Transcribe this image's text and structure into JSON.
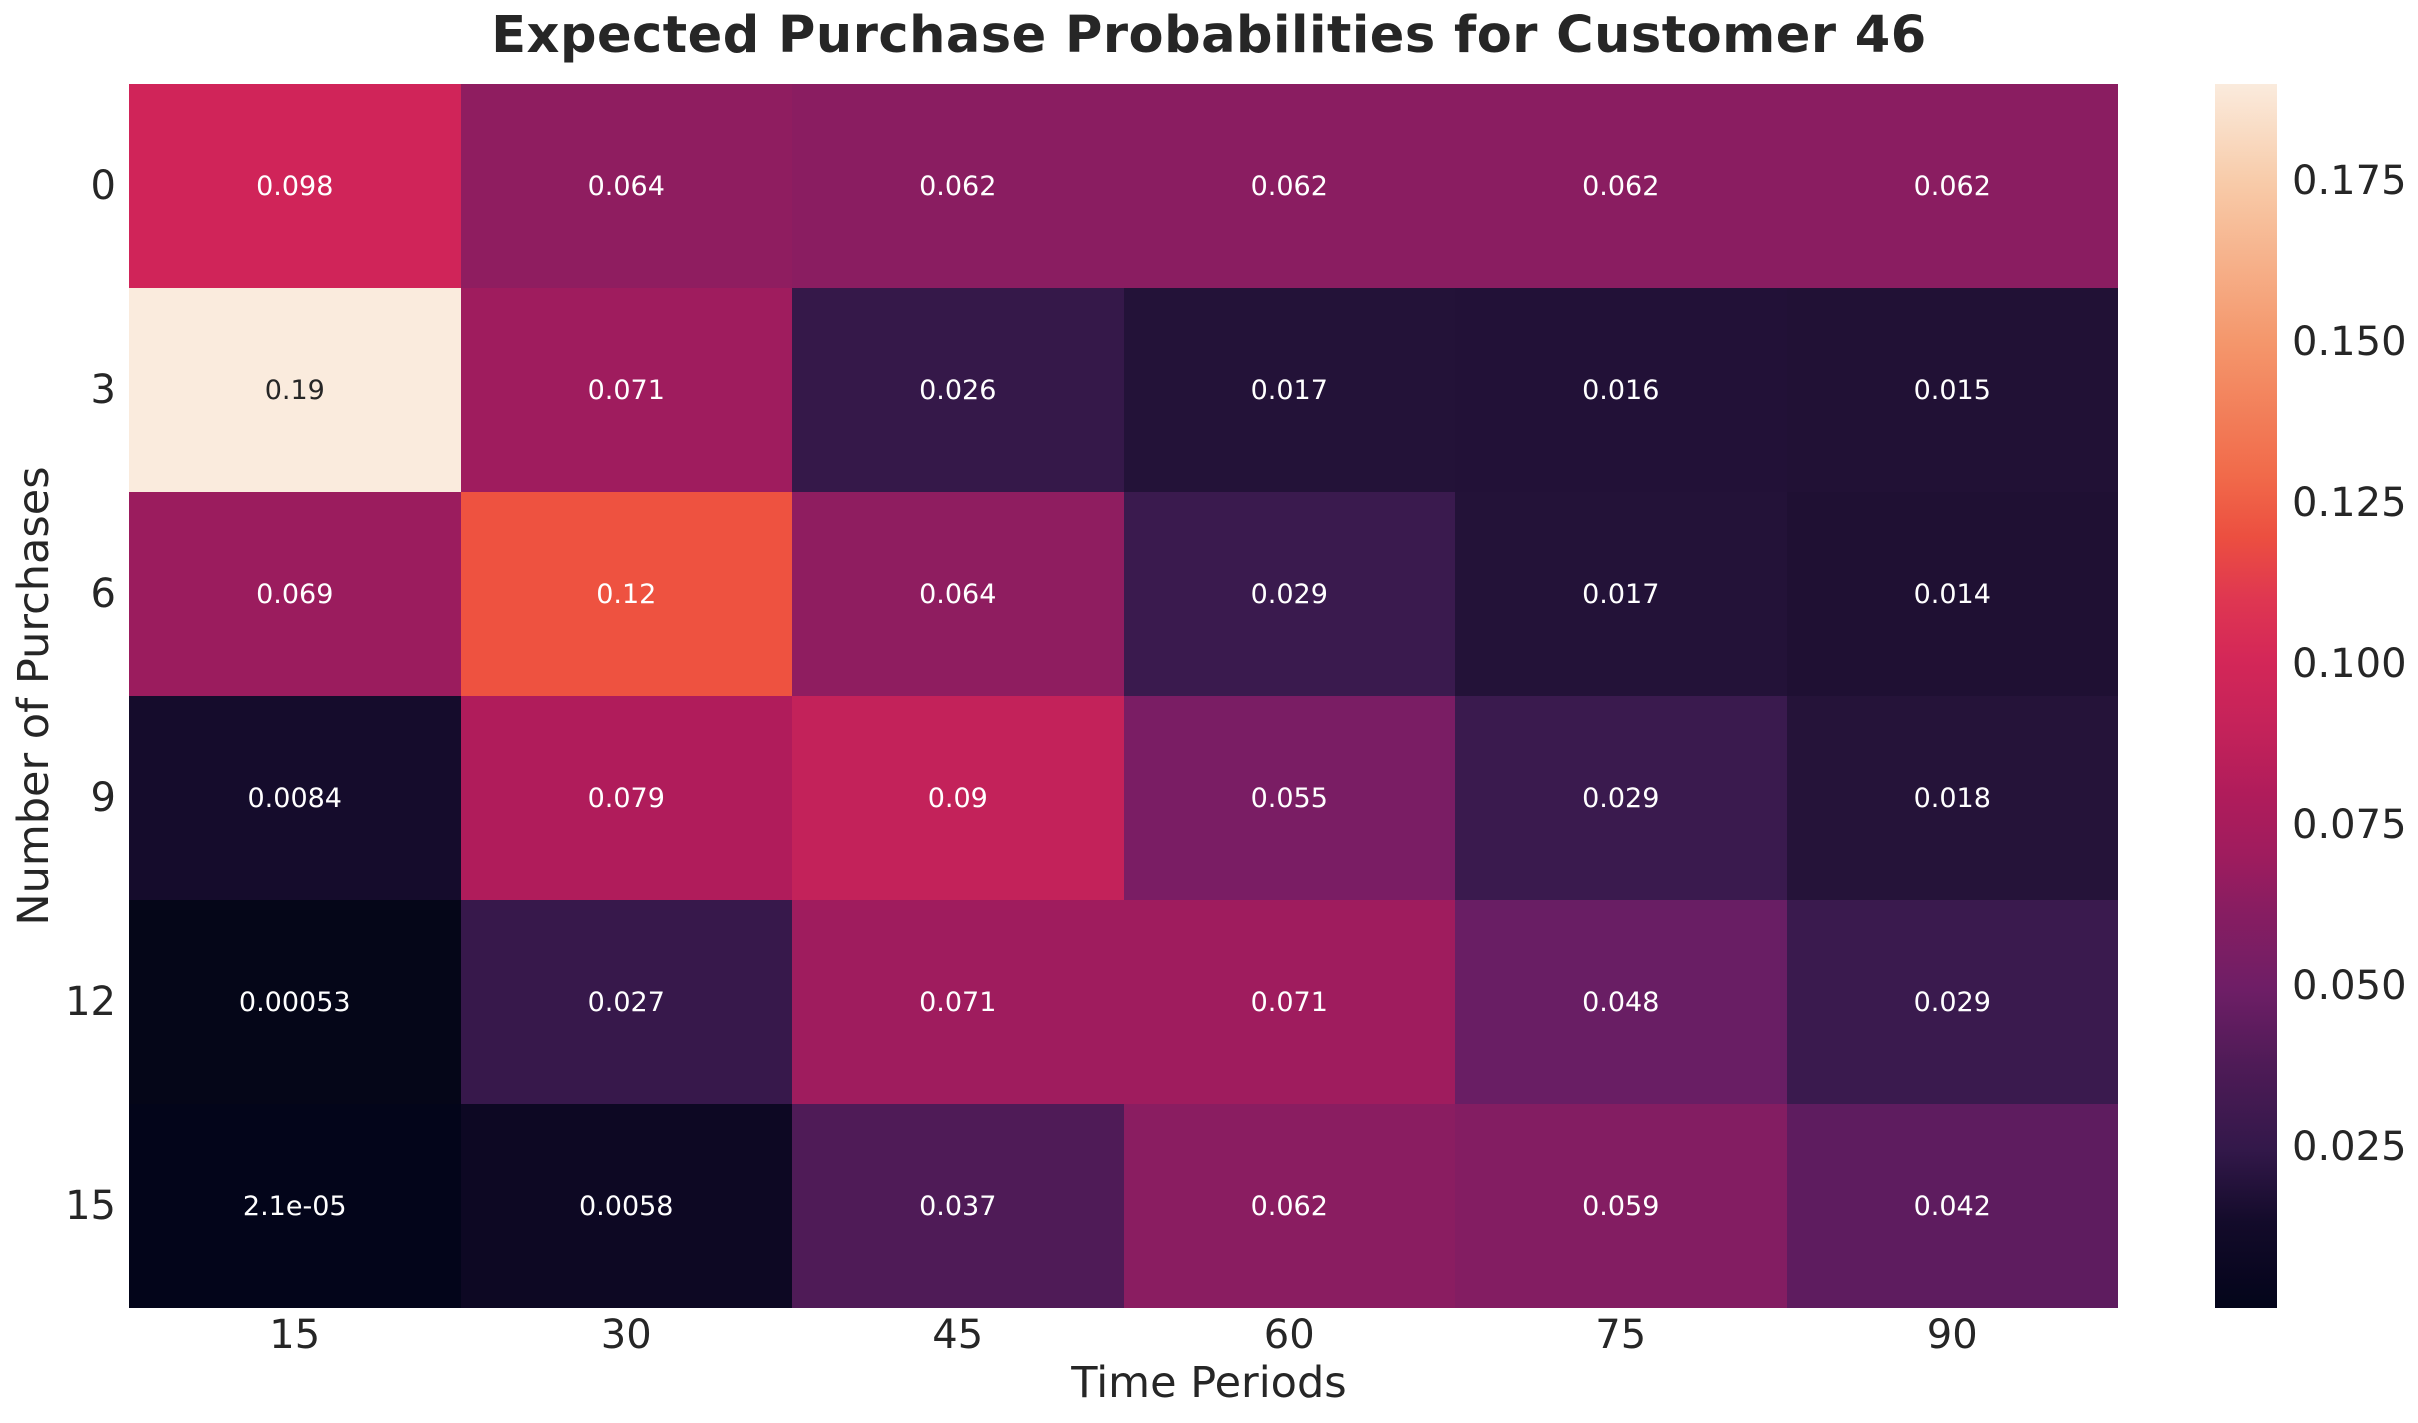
{
  "chart_data": {
    "type": "heatmap",
    "title": "Expected Purchase Probabilities for Customer 46",
    "xlabel": "Time Periods",
    "ylabel": "Number of Purchases",
    "x_categories": [
      "15",
      "30",
      "45",
      "60",
      "75",
      "90"
    ],
    "y_categories": [
      "0",
      "3",
      "6",
      "9",
      "12",
      "15"
    ],
    "values": [
      [
        0.098,
        0.064,
        0.062,
        0.062,
        0.062,
        0.062
      ],
      [
        0.19,
        0.071,
        0.026,
        0.017,
        0.016,
        0.015
      ],
      [
        0.069,
        0.12,
        0.064,
        0.029,
        0.017,
        0.014
      ],
      [
        0.0084,
        0.079,
        0.09,
        0.055,
        0.029,
        0.018
      ],
      [
        0.00053,
        0.027,
        0.071,
        0.071,
        0.048,
        0.029
      ],
      [
        2.1e-05,
        0.0058,
        0.037,
        0.062,
        0.059,
        0.042
      ]
    ],
    "value_labels": [
      [
        "0.098",
        "0.064",
        "0.062",
        "0.062",
        "0.062",
        "0.062"
      ],
      [
        "0.19",
        "0.071",
        "0.026",
        "0.017",
        "0.016",
        "0.015"
      ],
      [
        "0.069",
        "0.12",
        "0.064",
        "0.029",
        "0.017",
        "0.014"
      ],
      [
        "0.0084",
        "0.079",
        "0.09",
        "0.055",
        "0.029",
        "0.018"
      ],
      [
        "0.00053",
        "0.027",
        "0.071",
        "0.071",
        "0.048",
        "0.029"
      ],
      [
        "2.1e-05",
        "0.0058",
        "0.037",
        "0.062",
        "0.059",
        "0.042"
      ]
    ],
    "cell_colors": [
      [
        "#D02459",
        "#8F1D60",
        "#8A1D61",
        "#8A1D61",
        "#8A1D61",
        "#8A1D61"
      ],
      [
        "#FAEBDD",
        "#9F1C5E",
        "#351849",
        "#231238",
        "#221137",
        "#211135"
      ],
      [
        "#9B1C5E",
        "#EE5240",
        "#8F1D60",
        "#3A1A4E",
        "#231238",
        "#1F1033"
      ],
      [
        "#150C2C",
        "#B01C5B",
        "#C3225A",
        "#7A1D64",
        "#3A1A4E",
        "#251339"
      ],
      [
        "#050618",
        "#37184B",
        "#9F1C5E",
        "#9F1C5E",
        "#691E64",
        "#3A1A4E"
      ],
      [
        "#03051A",
        "#0D0823",
        "#4F1B57",
        "#8A1D61",
        "#831D62",
        "#5E1C5F"
      ]
    ],
    "cell_text_colors": [
      [
        "#FFFFFF",
        "#FFFFFF",
        "#FFFFFF",
        "#FFFFFF",
        "#FFFFFF",
        "#FFFFFF"
      ],
      [
        "#262626",
        "#FFFFFF",
        "#FFFFFF",
        "#FFFFFF",
        "#FFFFFF",
        "#FFFFFF"
      ],
      [
        "#FFFFFF",
        "#FFFFFF",
        "#FFFFFF",
        "#FFFFFF",
        "#FFFFFF",
        "#FFFFFF"
      ],
      [
        "#FFFFFF",
        "#FFFFFF",
        "#FFFFFF",
        "#FFFFFF",
        "#FFFFFF",
        "#FFFFFF"
      ],
      [
        "#FFFFFF",
        "#FFFFFF",
        "#FFFFFF",
        "#FFFFFF",
        "#FFFFFF",
        "#FFFFFF"
      ],
      [
        "#FFFFFF",
        "#FFFFFF",
        "#FFFFFF",
        "#FFFFFF",
        "#FFFFFF",
        "#FFFFFF"
      ]
    ],
    "colorbar": {
      "vmin": 2.1e-05,
      "vmax": 0.19,
      "tick_values": [
        0.175,
        0.15,
        0.125,
        0.1,
        0.075,
        0.05,
        0.025
      ],
      "tick_labels": [
        "0.175",
        "0.150",
        "0.125",
        "0.100",
        "0.075",
        "0.050",
        "0.025"
      ],
      "gradient_stops": [
        {
          "pos": 0,
          "color": "#03051A"
        },
        {
          "pos": 3,
          "color": "#0A0721"
        },
        {
          "pos": 7,
          "color": "#130B2A"
        },
        {
          "pos": 13,
          "color": "#33184A"
        },
        {
          "pos": 20,
          "color": "#4F1B57"
        },
        {
          "pos": 26,
          "color": "#6E1E66"
        },
        {
          "pos": 33,
          "color": "#8A1D61"
        },
        {
          "pos": 37,
          "color": "#9F1C5E"
        },
        {
          "pos": 42,
          "color": "#B01C5B"
        },
        {
          "pos": 47,
          "color": "#C3225A"
        },
        {
          "pos": 53,
          "color": "#D42758"
        },
        {
          "pos": 58,
          "color": "#DF3751"
        },
        {
          "pos": 63,
          "color": "#EC4F40"
        },
        {
          "pos": 68,
          "color": "#F16A4A"
        },
        {
          "pos": 79,
          "color": "#F4976C"
        },
        {
          "pos": 92,
          "color": "#F8CBA9"
        },
        {
          "pos": 100,
          "color": "#FAEBDD"
        }
      ]
    }
  }
}
